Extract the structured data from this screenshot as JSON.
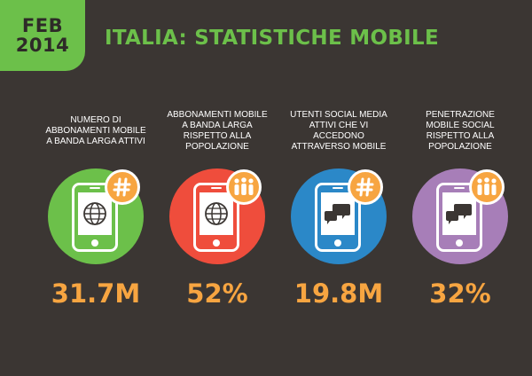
{
  "header": {
    "badge_month": "FEB",
    "badge_year": "2014",
    "title": "ITALIA: STATISTICHE MOBILE"
  },
  "stats": [
    {
      "description": "NUMERO DI ABBONAMENTI MOBILE A BANDA LARGA ATTIVI",
      "value": "31.7M",
      "circle_color": "#6cc04a",
      "screen_icon": "globe-icon",
      "badge_icon": "hashtag-icon"
    },
    {
      "description": "ABBONAMENTI MOBILE A BANDA LARGA RISPETTO ALLA POPOLAZIONE",
      "value": "52%",
      "circle_color": "#ef4d3c",
      "screen_icon": "globe-icon",
      "badge_icon": "people-icon"
    },
    {
      "description": "UTENTI SOCIAL MEDIA ATTIVI CHE VI ACCEDONO ATTRAVERSO MOBILE",
      "value": "19.8M",
      "circle_color": "#2b88c8",
      "screen_icon": "chat-bubbles-icon",
      "badge_icon": "hashtag-icon"
    },
    {
      "description": "PENETRAZIONE MOBILE SOCIAL RISPETTO ALLA POPOLAZIONE",
      "value": "32%",
      "circle_color": "#a77eb8",
      "screen_icon": "chat-bubbles-icon",
      "badge_icon": "people-icon"
    }
  ]
}
